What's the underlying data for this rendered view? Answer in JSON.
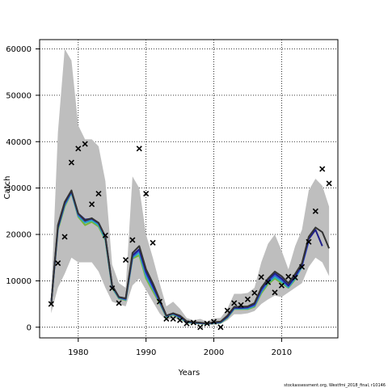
{
  "chart_data": {
    "type": "line",
    "title": "",
    "xlabel": "Years",
    "ylabel": "Catch",
    "xlim": [
      1974.3,
      2018.3
    ],
    "ylim": [
      -2300,
      62000
    ],
    "xticks": [
      1980,
      1990,
      2000,
      2010
    ],
    "yticks": [
      0,
      10000,
      20000,
      30000,
      40000,
      50000,
      60000
    ],
    "grid": true,
    "grid_style": "dotted",
    "footnote": "stockassessment.org, Westfmi_2018_final, r10146",
    "colors": {
      "band": "#bebebe",
      "obs": "#000000",
      "black_line": "#333333",
      "dark_blue": "#1f1f8a",
      "blue": "#3a5bd9",
      "cyan": "#2ab5b8",
      "green": "#7ab33a"
    },
    "x": [
      1976,
      1977,
      1978,
      1979,
      1980,
      1981,
      1982,
      1983,
      1984,
      1985,
      1986,
      1987,
      1988,
      1989,
      1990,
      1991,
      1992,
      1993,
      1994,
      1995,
      1996,
      1997,
      1998,
      1999,
      2000,
      2001,
      2002,
      2003,
      2004,
      2005,
      2006,
      2007,
      2008,
      2009,
      2010,
      2011,
      2012,
      2013,
      2014,
      2015,
      2016,
      2017
    ],
    "band": {
      "lower": [
        3000,
        8500,
        11500,
        15000,
        14000,
        14000,
        14000,
        12000,
        8500,
        5500,
        5000,
        4500,
        9000,
        10500,
        8000,
        5500,
        3000,
        1500,
        2000,
        1500,
        900,
        800,
        600,
        600,
        500,
        700,
        1500,
        2800,
        2800,
        3000,
        3500,
        5000,
        6000,
        6800,
        6500,
        7500,
        8500,
        9500,
        13000,
        15000,
        14000,
        11000
      ],
      "upper": [
        6500,
        42000,
        60000,
        57500,
        43500,
        40500,
        40500,
        39000,
        31500,
        13500,
        9500,
        8500,
        32500,
        30000,
        20000,
        15000,
        9500,
        4500,
        5500,
        4000,
        2000,
        1500,
        1800,
        1200,
        1900,
        2000,
        4000,
        7200,
        7200,
        7400,
        8500,
        14000,
        18000,
        20000,
        16500,
        12500,
        17500,
        21000,
        29500,
        32000,
        30500,
        26000
      ]
    },
    "series": [
      {
        "color": "black_line",
        "values": [
          5000,
          22000,
          27000,
          29500,
          24500,
          23000,
          23500,
          22500,
          19500,
          9000,
          6500,
          6200,
          16000,
          17500,
          12500,
          9500,
          6000,
          2500,
          3000,
          2500,
          1300,
          1100,
          1000,
          800,
          1100,
          1200,
          2500,
          4400,
          4400,
          4500,
          5200,
          8500,
          10500,
          12000,
          11000,
          9500,
          11500,
          13800,
          19500,
          21500,
          20500,
          17000
        ]
      },
      {
        "color": "dark_blue",
        "values": [
          5000,
          21500,
          26800,
          29300,
          24500,
          23200,
          23400,
          22500,
          19500,
          9000,
          6500,
          6200,
          15500,
          16800,
          12000,
          9000,
          5800,
          2500,
          3000,
          2300,
          1200,
          1000,
          900,
          800,
          1000,
          1100,
          2300,
          4200,
          4200,
          4300,
          5000,
          8200,
          10200,
          11600,
          10500,
          9000,
          11000,
          13500,
          19000,
          21000,
          17500,
          null
        ]
      },
      {
        "color": "blue",
        "values": [
          5000,
          21500,
          26500,
          29200,
          24200,
          22800,
          23300,
          22300,
          19300,
          8800,
          6400,
          6000,
          15200,
          16500,
          11500,
          8600,
          5500,
          2400,
          2900,
          2200,
          1200,
          1000,
          900,
          750,
          950,
          1100,
          2200,
          4100,
          4100,
          4200,
          4700,
          7800,
          9800,
          11200,
          10200,
          8800,
          10800,
          13200,
          18500,
          null,
          null,
          null
        ]
      },
      {
        "color": "cyan",
        "values": [
          5000,
          21300,
          26300,
          29000,
          24000,
          22500,
          23000,
          22000,
          19000,
          8600,
          6300,
          5900,
          15000,
          16000,
          11000,
          8300,
          5400,
          2300,
          2800,
          2100,
          1100,
          950,
          850,
          700,
          900,
          1000,
          2100,
          4000,
          4000,
          4000,
          4600,
          7600,
          9600,
          10800,
          9800,
          8600,
          10500,
          13000,
          null,
          null,
          null,
          null
        ]
      },
      {
        "color": "green",
        "values": [
          5000,
          21000,
          26000,
          29000,
          23800,
          22000,
          22700,
          21700,
          18800,
          8500,
          6200,
          5800,
          14800,
          15500,
          10500,
          7800,
          5200,
          2200,
          2700,
          2000,
          1000,
          900,
          800,
          700,
          850,
          950,
          2000,
          3900,
          3900,
          3900,
          4400,
          7300,
          9300,
          10500,
          9500,
          8500,
          10300,
          null,
          null,
          null,
          null,
          null
        ]
      }
    ],
    "observed": {
      "x": [
        1976,
        1977,
        1978,
        1979,
        1980,
        1981,
        1982,
        1983,
        1984,
        1985,
        1986,
        1987,
        1988,
        1989,
        1990,
        1991,
        1992,
        1993,
        1994,
        1995,
        1996,
        1997,
        1998,
        1999,
        2000,
        2001,
        2002,
        2003,
        2004,
        2005,
        2006,
        2007,
        2008,
        2009,
        2010,
        2011,
        2012,
        2013,
        2014,
        2015,
        2016,
        2017
      ],
      "values": [
        5000,
        13800,
        19500,
        35500,
        38500,
        39500,
        26500,
        28800,
        19800,
        8400,
        5200,
        14500,
        18800,
        38500,
        28800,
        18200,
        5500,
        1800,
        1800,
        1500,
        800,
        1000,
        0,
        800,
        1200,
        0,
        3600,
        5200,
        4800,
        6000,
        7400,
        10800,
        9700,
        7500,
        9000,
        10900,
        10700,
        13000,
        18400,
        25000,
        34100,
        31000
      ]
    }
  }
}
